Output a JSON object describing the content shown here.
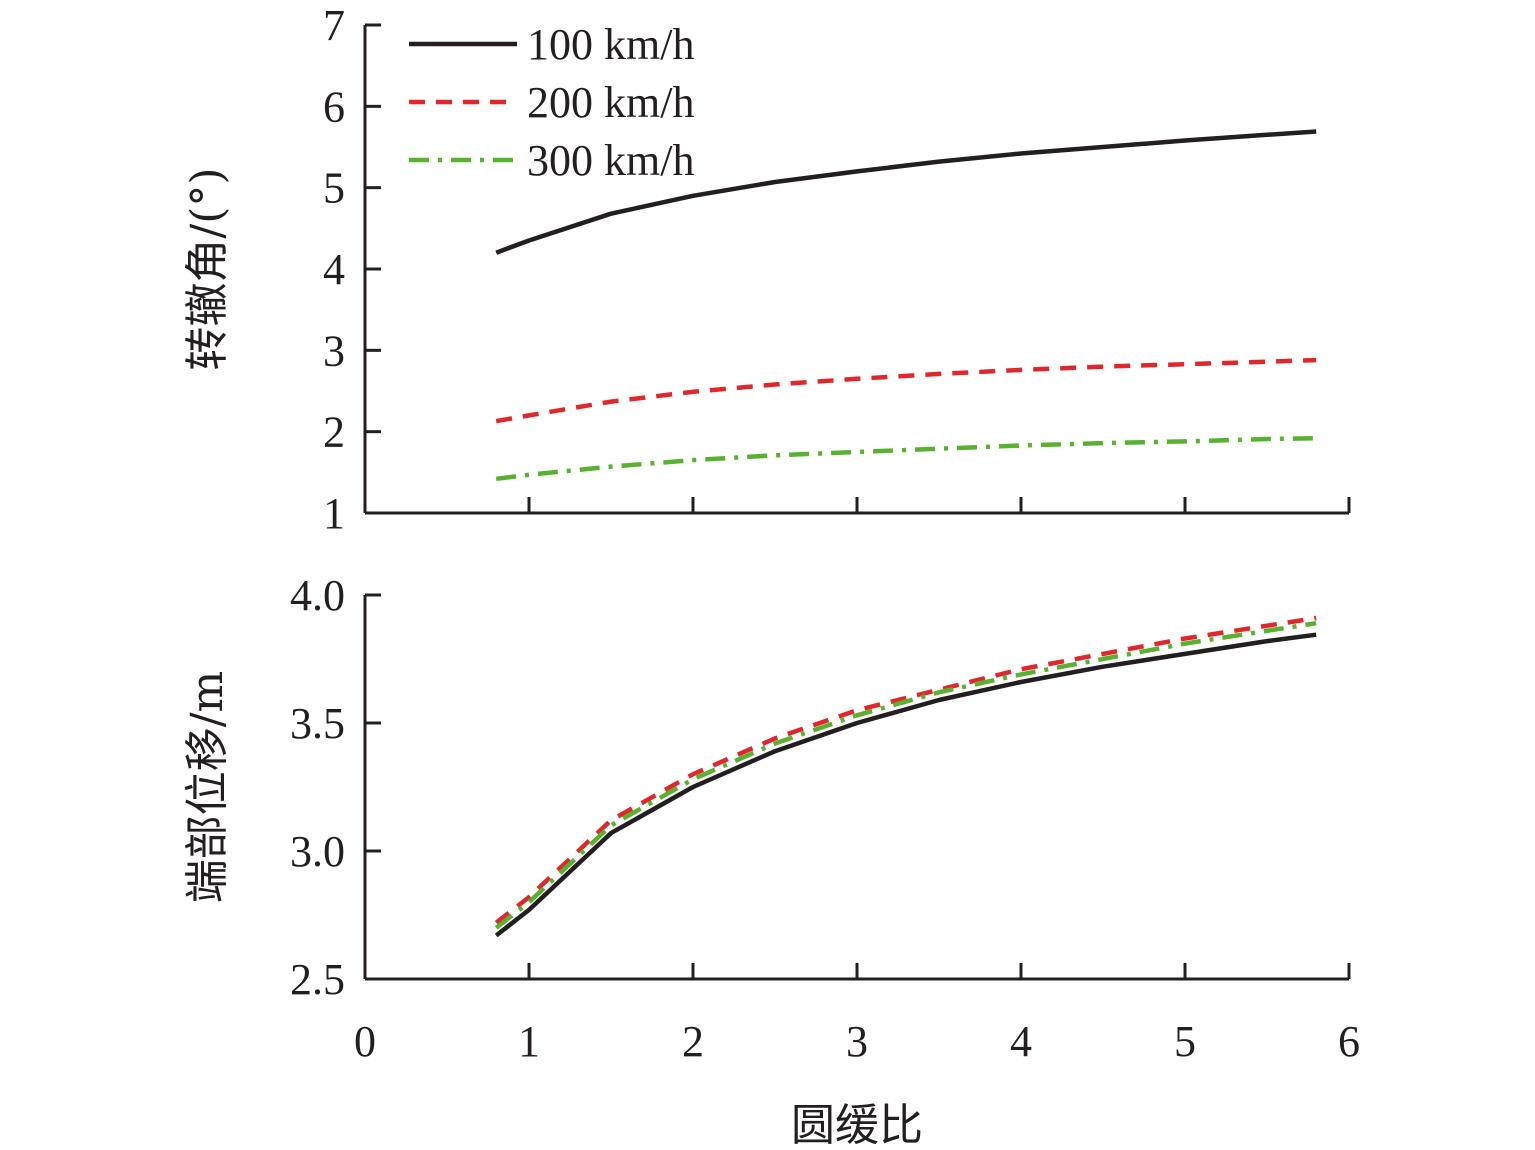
{
  "chart_data": [
    {
      "type": "line",
      "id": "top",
      "title": "",
      "xlabel": "",
      "ylabel": "转辙角/(°)",
      "xlim": [
        0,
        6
      ],
      "ylim": [
        1,
        7
      ],
      "xticks": [
        0,
        1,
        2,
        3,
        4,
        5,
        6
      ],
      "xtick_labels": [
        "",
        "",
        "",
        "",
        "",
        "",
        ""
      ],
      "yticks": [
        1,
        2,
        3,
        4,
        5,
        6,
        7
      ],
      "ytick_labels": [
        "1",
        "2",
        "3",
        "4",
        "5",
        "6",
        "7"
      ],
      "grid": false,
      "legend": "top-left",
      "x": [
        0.8,
        1.0,
        1.5,
        2.0,
        2.5,
        3.0,
        3.5,
        4.0,
        4.5,
        5.0,
        5.5,
        5.8
      ],
      "series": [
        {
          "name": "100 km/h",
          "color": "#231f20",
          "dash": "solid",
          "values": [
            4.2,
            4.35,
            4.68,
            4.9,
            5.07,
            5.2,
            5.32,
            5.42,
            5.5,
            5.58,
            5.65,
            5.69
          ]
        },
        {
          "name": "200 km/h",
          "color": "#e0272d",
          "dash": "dashed",
          "values": [
            2.13,
            2.2,
            2.37,
            2.49,
            2.58,
            2.65,
            2.71,
            2.76,
            2.8,
            2.83,
            2.86,
            2.88
          ]
        },
        {
          "name": "300 km/h",
          "color": "#5ab031",
          "dash": "dashdot",
          "values": [
            1.42,
            1.47,
            1.57,
            1.65,
            1.71,
            1.75,
            1.79,
            1.83,
            1.86,
            1.88,
            1.91,
            1.92
          ]
        }
      ]
    },
    {
      "type": "line",
      "id": "bottom",
      "title": "",
      "xlabel": "圆缓比",
      "ylabel": "端部位移/m",
      "xlim": [
        0,
        6
      ],
      "ylim": [
        2.5,
        4.0
      ],
      "xticks": [
        0,
        1,
        2,
        3,
        4,
        5,
        6
      ],
      "xtick_labels": [
        "0",
        "1",
        "2",
        "3",
        "4",
        "5",
        "6"
      ],
      "yticks": [
        2.5,
        3.0,
        3.5,
        4.0
      ],
      "ytick_labels": [
        "2.5",
        "3.0",
        "3.5",
        "4.0"
      ],
      "grid": false,
      "x": [
        0.8,
        1.0,
        1.5,
        2.0,
        2.5,
        3.0,
        3.5,
        4.0,
        4.5,
        5.0,
        5.5,
        5.8
      ],
      "series": [
        {
          "name": "100 km/h",
          "color": "#231f20",
          "dash": "solid",
          "values": [
            2.67,
            2.77,
            3.07,
            3.25,
            3.39,
            3.5,
            3.59,
            3.66,
            3.72,
            3.77,
            3.82,
            3.845
          ]
        },
        {
          "name": "200 km/h",
          "color": "#e0272d",
          "dash": "dashed",
          "values": [
            2.72,
            2.82,
            3.12,
            3.3,
            3.44,
            3.55,
            3.63,
            3.71,
            3.77,
            3.83,
            3.88,
            3.91
          ]
        },
        {
          "name": "300 km/h",
          "color": "#5ab031",
          "dash": "dashdot",
          "values": [
            2.7,
            2.8,
            3.1,
            3.28,
            3.42,
            3.53,
            3.62,
            3.69,
            3.75,
            3.81,
            3.86,
            3.89
          ]
        }
      ]
    }
  ]
}
